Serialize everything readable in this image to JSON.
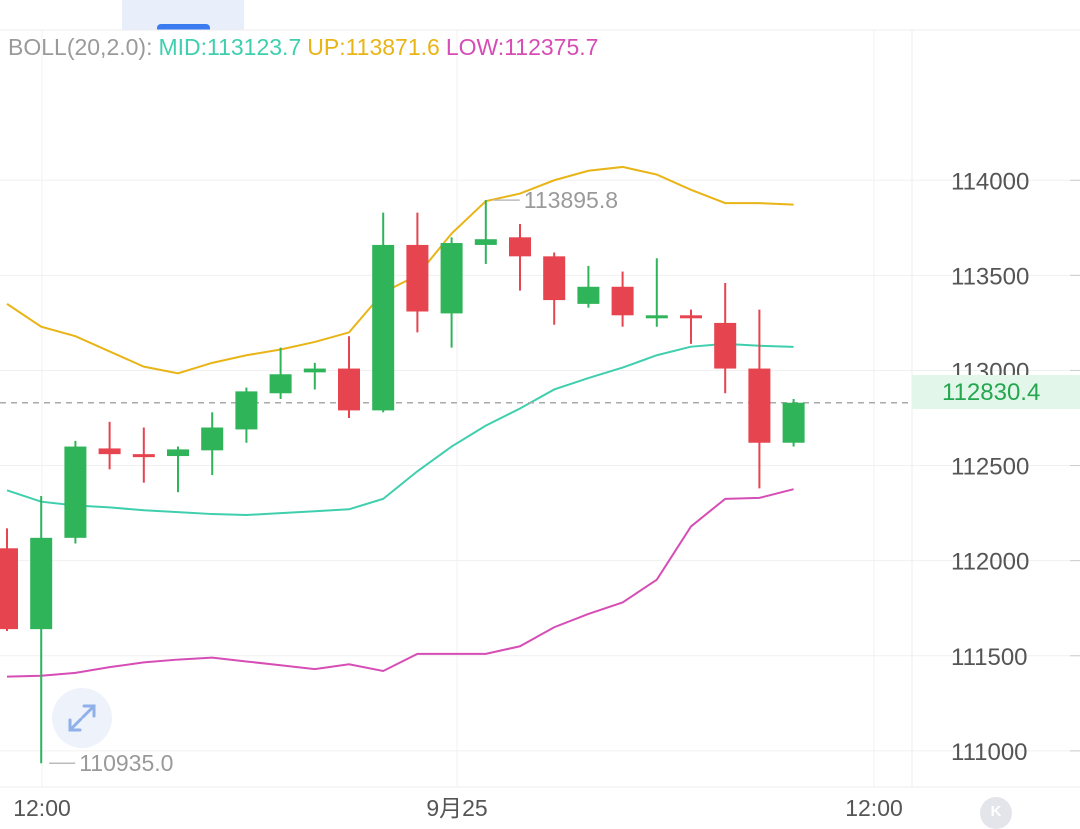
{
  "legend": {
    "label": "BOLL(20,2.0):",
    "mid": "MID:113123.7",
    "up": "UP:113871.6",
    "low": "LOW:112375.7"
  },
  "last_price": "112830.4",
  "high_marker": "113895.8",
  "low_marker": "110935.0",
  "colors": {
    "up_candle": "#2fb45a",
    "down_candle": "#e6444f",
    "mid_line": "#3fcfae",
    "upper_band": "#e8b416",
    "lower_band": "#d64db5",
    "legend_label": "#9a9a9a",
    "axis_text": "#555555"
  },
  "k_button": "K",
  "chart_data": {
    "type": "candlestick",
    "y_ticks": [
      114000,
      113500,
      113000,
      112500,
      112000,
      111500,
      111000
    ],
    "y_tick_labels": [
      "114000",
      "113500",
      "113000",
      "112500",
      "112000",
      "111500",
      "111000"
    ],
    "ylim": [
      110810,
      114790
    ],
    "x_labels": [
      "12:00",
      "9月25",
      "12:00"
    ],
    "grid": true,
    "candles": [
      {
        "o": 112065,
        "h": 112170,
        "l": 111630,
        "c": 111640
      },
      {
        "o": 111640,
        "h": 112340,
        "l": 110935,
        "c": 112120
      },
      {
        "o": 112120,
        "h": 112630,
        "l": 112090,
        "c": 112600
      },
      {
        "o": 112590,
        "h": 112730,
        "l": 112480,
        "c": 112560
      },
      {
        "o": 112560,
        "h": 112700,
        "l": 112410,
        "c": 112555
      },
      {
        "o": 112550,
        "h": 112600,
        "l": 112360,
        "c": 112585
      },
      {
        "o": 112580,
        "h": 112780,
        "l": 112450,
        "c": 112700
      },
      {
        "o": 112690,
        "h": 112910,
        "l": 112620,
        "c": 112890
      },
      {
        "o": 112880,
        "h": 113120,
        "l": 112850,
        "c": 112980
      },
      {
        "o": 112990,
        "h": 113040,
        "l": 112900,
        "c": 113010
      },
      {
        "o": 113010,
        "h": 113180,
        "l": 112750,
        "c": 112790
      },
      {
        "o": 112790,
        "h": 113830,
        "l": 112780,
        "c": 113660
      },
      {
        "o": 113660,
        "h": 113830,
        "l": 113200,
        "c": 113310
      },
      {
        "o": 113300,
        "h": 113700,
        "l": 113120,
        "c": 113670
      },
      {
        "o": 113660,
        "h": 113895.8,
        "l": 113560,
        "c": 113690
      },
      {
        "o": 113700,
        "h": 113770,
        "l": 113420,
        "c": 113600
      },
      {
        "o": 113600,
        "h": 113620,
        "l": 113240,
        "c": 113370
      },
      {
        "o": 113350,
        "h": 113550,
        "l": 113330,
        "c": 113440
      },
      {
        "o": 113440,
        "h": 113520,
        "l": 113230,
        "c": 113290
      },
      {
        "o": 113290,
        "h": 113590,
        "l": 113230,
        "c": 113290
      },
      {
        "o": 113290,
        "h": 113320,
        "l": 113140,
        "c": 113280
      },
      {
        "o": 113250,
        "h": 113460,
        "l": 112880,
        "c": 113010
      },
      {
        "o": 113010,
        "h": 113320,
        "l": 112380,
        "c": 112620
      },
      {
        "o": 112620,
        "h": 112850,
        "l": 112600,
        "c": 112830.4
      }
    ],
    "mid": [
      112370,
      112310,
      112290,
      112280,
      112265,
      112255,
      112245,
      112240,
      112250,
      112260,
      112270,
      112325,
      112470,
      112600,
      112710,
      112800,
      112900,
      112960,
      113015,
      113080,
      113125,
      113140,
      113130,
      113123.7
    ],
    "upper": [
      113350,
      113230,
      113180,
      113100,
      113020,
      112985,
      113040,
      113080,
      113110,
      113150,
      113200,
      113410,
      113500,
      113720,
      113890,
      113930,
      114000,
      114050,
      114070,
      114030,
      113950,
      113880,
      113880,
      113871.6
    ],
    "lower": [
      111390,
      111395,
      111410,
      111440,
      111465,
      111480,
      111490,
      111470,
      111450,
      111430,
      111455,
      111420,
      111510,
      111510,
      111510,
      111550,
      111650,
      111720,
      111780,
      111900,
      112180,
      112325,
      112330,
      112375.7
    ]
  }
}
